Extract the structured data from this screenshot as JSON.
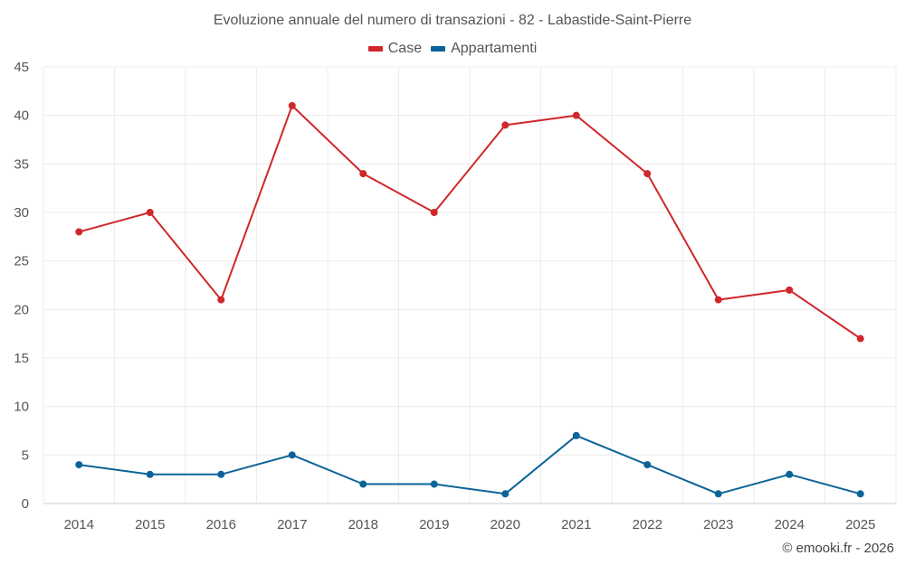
{
  "chart_data": {
    "type": "line",
    "title": "Evoluzione annuale del numero di transazioni - 82 - Labastide-Saint-Pierre",
    "xlabel": "",
    "ylabel": "",
    "categories": [
      "2014",
      "2015",
      "2016",
      "2017",
      "2018",
      "2019",
      "2020",
      "2021",
      "2022",
      "2023",
      "2024",
      "2025"
    ],
    "series": [
      {
        "name": "Case",
        "color": "#d0272b",
        "values": [
          28,
          30,
          21,
          41,
          34,
          30,
          39,
          40,
          34,
          21,
          22,
          17
        ]
      },
      {
        "name": "Appartamenti",
        "color": "#0b6498",
        "values": [
          4,
          3,
          3,
          5,
          2,
          2,
          1,
          7,
          4,
          1,
          3,
          1
        ]
      }
    ],
    "ylim": [
      0,
      45
    ],
    "yticks": [
      0,
      5,
      10,
      15,
      20,
      25,
      30,
      35,
      40,
      45
    ],
    "grid": true,
    "legend_position": "top-center"
  },
  "credit": "© emooki.fr - 2026"
}
